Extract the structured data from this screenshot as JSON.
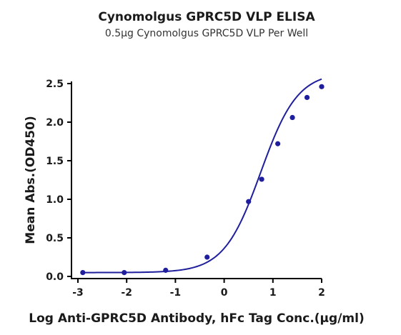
{
  "chart_data": {
    "type": "scatter",
    "title": "Cynomolgus GPRC5D VLP ELISA",
    "subtitle": "0.5µg Cynomolgus GPRC5D VLP Per Well",
    "xlabel": "Log Anti-GPRC5D Antibody, hFc Tag Conc.(µg/ml)",
    "ylabel": "Mean Abs.(OD450)",
    "xlim": [
      -3,
      2
    ],
    "ylim": [
      0,
      2.5
    ],
    "xticks": [
      "-3",
      "-2",
      "-1",
      "0",
      "1",
      "2"
    ],
    "yticks": [
      "0.0",
      "0.5",
      "1.0",
      "1.5",
      "2.0",
      "2.5"
    ],
    "grid": false,
    "colors": {
      "series": "#1f1f9e"
    },
    "fit": {
      "model": "4PL",
      "bottom": 0.05,
      "top": 2.65,
      "log_ec50": 0.75,
      "hill": 1.15
    },
    "series": [
      {
        "x": [
          -2.9,
          -2.05,
          -1.2,
          -0.35,
          0.5,
          0.77,
          1.1,
          1.4,
          1.7,
          2.0
        ],
        "y": [
          0.05,
          0.05,
          0.08,
          0.25,
          0.97,
          1.26,
          1.72,
          2.06,
          2.32,
          2.46
        ]
      }
    ]
  }
}
